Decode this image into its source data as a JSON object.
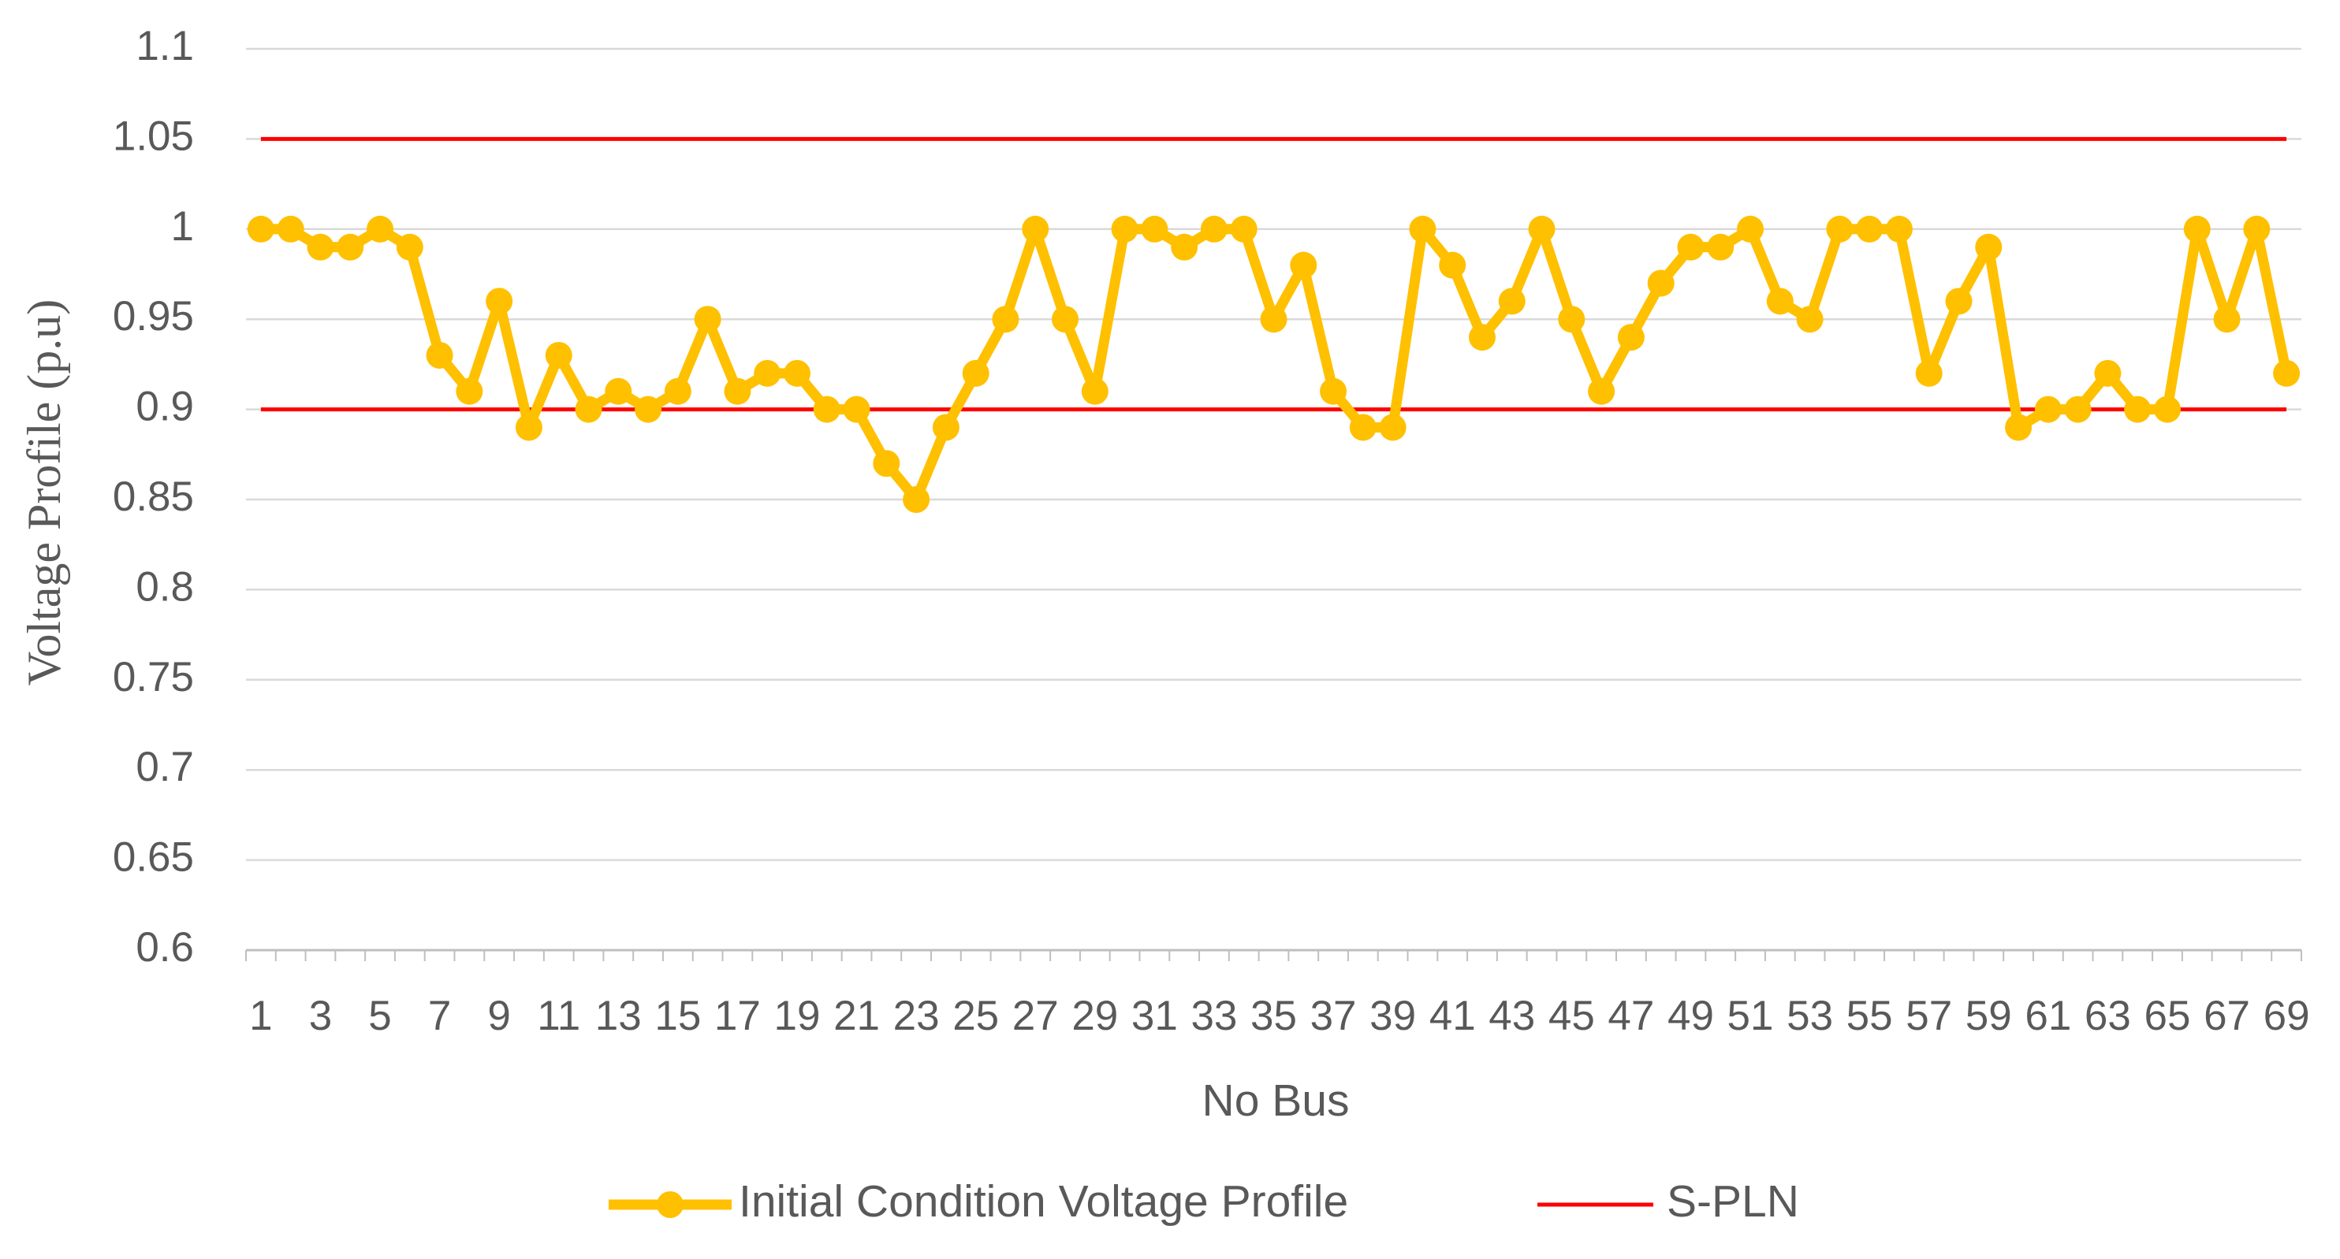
{
  "chart_data": {
    "type": "line",
    "x_label": "No Bus",
    "y_label": "Voltage Profile (p.u)",
    "categories": [
      "1",
      null,
      "3",
      null,
      "5",
      null,
      "7",
      null,
      "9",
      null,
      "11",
      null,
      "13",
      null,
      "15",
      null,
      "17",
      null,
      "19",
      null,
      "21",
      null,
      "23",
      null,
      "25",
      null,
      "27",
      null,
      "29",
      null,
      "31",
      null,
      "33",
      null,
      "35",
      null,
      "37",
      null,
      "39",
      null,
      "41",
      null,
      "43",
      null,
      "45",
      null,
      "47",
      null,
      "49",
      null,
      "51",
      null,
      "53",
      null,
      "55",
      null,
      "57",
      null,
      "59",
      null,
      "61",
      null,
      "63",
      null,
      "65",
      null,
      "67",
      null,
      "69"
    ],
    "series": [
      {
        "name": "Initial Condition Voltage Profile",
        "color": "#ffc000",
        "values": [
          1.0,
          1.0,
          0.99,
          0.99,
          1.0,
          0.99,
          0.93,
          0.91,
          0.96,
          0.89,
          0.93,
          0.9,
          0.91,
          0.9,
          0.91,
          0.95,
          0.91,
          0.92,
          0.92,
          0.9,
          0.9,
          0.87,
          0.85,
          0.89,
          0.92,
          0.95,
          1.0,
          0.95,
          0.91,
          1.0,
          1.0,
          0.99,
          1.0,
          1.0,
          0.95,
          0.98,
          0.91,
          0.89,
          0.89,
          1.0,
          0.98,
          0.94,
          0.96,
          1.0,
          0.95,
          0.91,
          0.94,
          0.97,
          0.99,
          0.99,
          1.0,
          0.96,
          0.95,
          1.0,
          1.0,
          1.0,
          0.92,
          0.96,
          0.99,
          0.89,
          0.9,
          0.9,
          0.92,
          0.9,
          0.9,
          1.0,
          0.95,
          1.0,
          0.92
        ]
      }
    ],
    "reference_lines": {
      "name": "S-PLN",
      "color": "#ff0000",
      "values": [
        1.05,
        0.9
      ]
    },
    "ylim": [
      0.6,
      1.1
    ],
    "yticks": [
      0.6,
      0.65,
      0.7,
      0.75,
      0.8,
      0.85,
      0.9,
      0.95,
      1,
      1.05,
      1.1
    ],
    "grid": true
  }
}
